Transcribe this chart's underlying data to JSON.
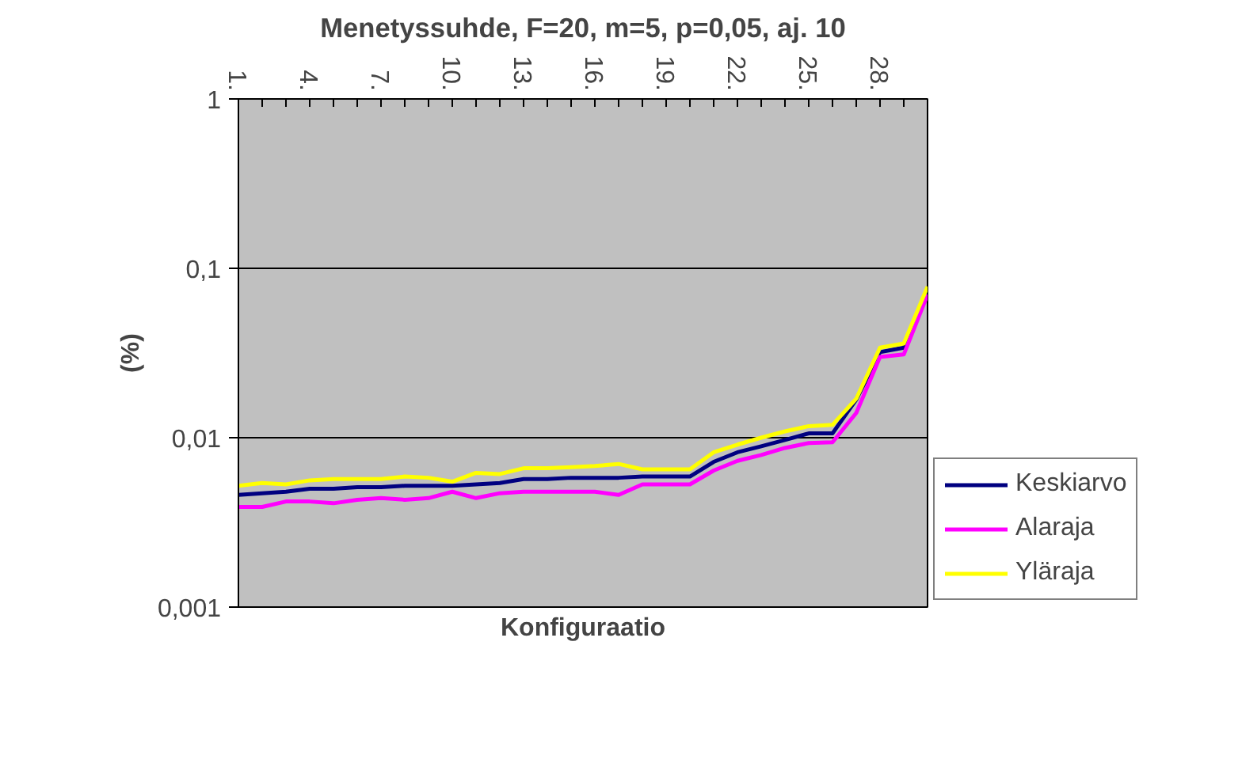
{
  "chart_data": {
    "type": "line",
    "title": "Menetyssuhde, F=20, m=5, p=0,05, aj. 10",
    "xlabel": "Konfiguraatio",
    "ylabel": "(%)",
    "categories": [
      "1.",
      null,
      null,
      "4.",
      null,
      null,
      "7.",
      null,
      null,
      "10.",
      null,
      null,
      "13.",
      null,
      null,
      "16.",
      null,
      null,
      "19.",
      null,
      null,
      "22.",
      null,
      null,
      "25.",
      null,
      null,
      "28.",
      null,
      null
    ],
    "series": [
      {
        "name": "Keskiarvo",
        "color": "#000080",
        "values": [
          0.0046,
          0.0047,
          0.0048,
          0.005,
          0.005,
          0.0051,
          0.0051,
          0.0052,
          0.0052,
          0.0052,
          0.0053,
          0.0054,
          0.0057,
          0.0057,
          0.0058,
          0.0058,
          0.0058,
          0.0059,
          0.0059,
          0.0059,
          0.0072,
          0.0082,
          0.0089,
          0.0097,
          0.0106,
          0.0106,
          0.0168,
          0.032,
          0.034,
          0.074
        ]
      },
      {
        "name": "Alaraja",
        "color": "#ff00ff",
        "values": [
          0.0039,
          0.0039,
          0.0042,
          0.0042,
          0.0041,
          0.0043,
          0.0044,
          0.0043,
          0.0044,
          0.0048,
          0.0044,
          0.0047,
          0.0048,
          0.0048,
          0.0048,
          0.0048,
          0.0046,
          0.0053,
          0.0053,
          0.0053,
          0.0064,
          0.0073,
          0.0079,
          0.0087,
          0.0093,
          0.0094,
          0.014,
          0.03,
          0.031,
          0.07
        ]
      },
      {
        "name": "Yläraja",
        "color": "#ffff00",
        "values": [
          0.0052,
          0.0054,
          0.0053,
          0.0056,
          0.0057,
          0.0057,
          0.0057,
          0.0059,
          0.0058,
          0.0055,
          0.0062,
          0.0061,
          0.0066,
          0.0066,
          0.0067,
          0.0068,
          0.007,
          0.0065,
          0.0065,
          0.0065,
          0.0082,
          0.0091,
          0.01,
          0.0109,
          0.0117,
          0.0119,
          0.017,
          0.034,
          0.036,
          0.078
        ]
      }
    ],
    "log": "y",
    "ylim": [
      0.001,
      1
    ],
    "yticks": [
      {
        "value": 0.001,
        "label": "0,001"
      },
      {
        "value": 0.01,
        "label": "0,01"
      },
      {
        "value": 0.1,
        "label": "0,1"
      },
      {
        "value": 1,
        "label": "1"
      }
    ],
    "grid": "y",
    "legend": "right",
    "marker": "none",
    "line_style": "solid"
  }
}
